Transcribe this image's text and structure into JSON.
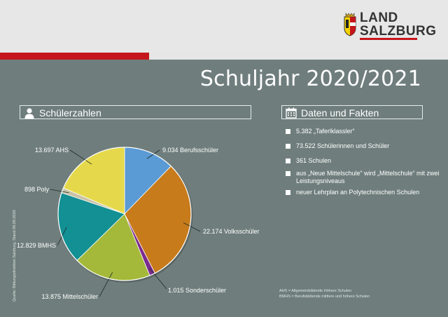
{
  "logo": {
    "line1": "LAND",
    "line2": "SALZBURG"
  },
  "title": "Schuljahr 2020/2021",
  "section_left": {
    "label": "Schülerzahlen",
    "icon": "person-icon"
  },
  "section_right": {
    "label": "Daten und Fakten",
    "icon": "calendar-icon"
  },
  "facts": [
    "5.382 „Taferlklassler“",
    "73.522 Schülerinnen und Schüler",
    "361 Schulen",
    "aus „Neue Mittelschule“ wird „Mittelschule“ mit zwei Leistungsniveaus",
    "neuer Lehrplan an Polytechnischen Schulen"
  ],
  "footnote": [
    "AHS = Allgemeinbildende Höhere Schulen",
    "BMHS = Berufsbildende mittlere und höhere Schulen"
  ],
  "source": "Quelle: Bildungsdirektion Salzburg, Stand 09.09.2020",
  "chart_data": {
    "type": "pie",
    "slices": [
      {
        "label": "9.034 Berufsschüler",
        "value": 9034,
        "color": "#5b9bd5"
      },
      {
        "label": "22.174 Volksschüler",
        "value": 22174,
        "color": "#c87b1a"
      },
      {
        "label": "1.015 Sonderschüler",
        "value": 1015,
        "color": "#7b2c8f"
      },
      {
        "label": "13.875 Mittelschüler",
        "value": 13875,
        "color": "#a4b93a"
      },
      {
        "label": "12.829 BMHS",
        "value": 12829,
        "color": "#129094"
      },
      {
        "label": "898 Poly",
        "value": 898,
        "color": "#c9c2a6"
      },
      {
        "label": "13.697 AHS",
        "value": 13697,
        "color": "#e5d94b"
      }
    ]
  }
}
